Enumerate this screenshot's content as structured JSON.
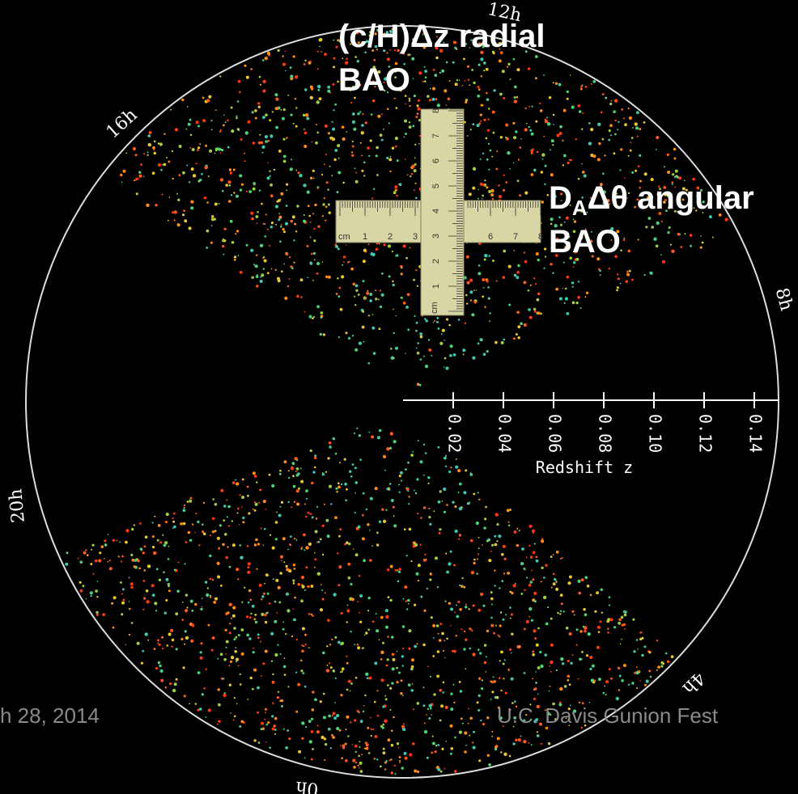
{
  "radial_label": {
    "line1": "(c/H)Δz radial",
    "line2": "BAO"
  },
  "angular_label": {
    "symbol": "D",
    "subscript": "A",
    "rest": "Δθ angular",
    "line2": "BAO"
  },
  "hour_labels": [
    "12h",
    "16h",
    "8h",
    "20h",
    "4h",
    "0h"
  ],
  "redshift_axis": {
    "title": "Redshift z",
    "ticks": [
      "0.02",
      "0.04",
      "0.06",
      "0.08",
      "0.10",
      "0.12",
      "0.14"
    ]
  },
  "ruler": {
    "unit": "cm",
    "numbers": [
      "1",
      "2",
      "3",
      "4",
      "5",
      "6",
      "7",
      "8"
    ]
  },
  "footer": {
    "date": "h 28, 2014",
    "event": "U.C. Davis Gunion Fest"
  }
}
